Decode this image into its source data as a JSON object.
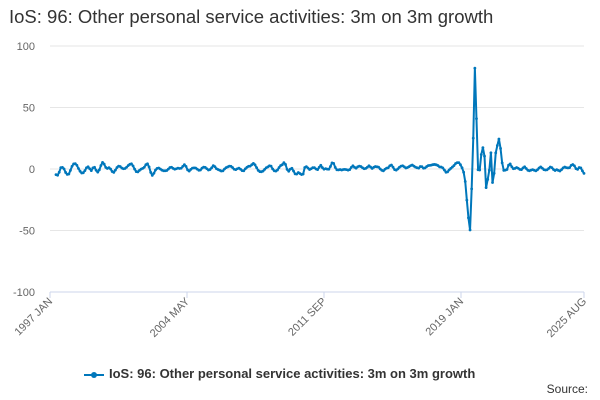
{
  "chart_data": {
    "type": "line",
    "title": "IoS: 96: Other personal service activities: 3m on 3m growth",
    "xlabel": "",
    "ylabel": "",
    "ylim": [
      -100,
      100
    ],
    "yticks": [
      100,
      50,
      0,
      -50,
      -100
    ],
    "x_start": "1997 JAN",
    "x_end": "2025 AUG",
    "x_tick_labels": [
      "1997 JAN",
      "2004 MAY",
      "2011 SEP",
      "2019 JAN",
      "2025 AUG"
    ],
    "grid": true,
    "legend_position": "bottom",
    "series": [
      {
        "name": "IoS: 96: Other personal service activities: 3m on 3m growth",
        "color": "#0077bb",
        "values": [
          -4.6,
          -5.1,
          -2.6,
          1.1,
          1.3,
          0.1,
          -2.8,
          -4.4,
          -4.1,
          -1.1,
          2.2,
          4.1,
          4.4,
          3.0,
          0.4,
          -1.8,
          -3.2,
          -3.0,
          -1.3,
          1.0,
          1.8,
          0.2,
          -1.3,
          0.9,
          1.4,
          -1.0,
          -2.5,
          -0.7,
          2.8,
          5.4,
          4.0,
          1.3,
          0.4,
          1.1,
          0.0,
          -2.0,
          -2.7,
          -0.9,
          1.2,
          2.3,
          2.0,
          0.8,
          0.2,
          0.4,
          1.4,
          2.8,
          3.8,
          4.2,
          2.5,
          -0.1,
          -2.1,
          -2.3,
          -1.1,
          -0.1,
          0.5,
          1.4,
          3.5,
          4.2,
          1.7,
          -2.7,
          -5.2,
          -3.5,
          -0.8,
          0.5,
          0.8,
          0.0,
          -0.9,
          -1.4,
          -1.4,
          -1.2,
          -0.1,
          1.2,
          1.4,
          0.5,
          -0.2,
          0.2,
          0.7,
          0.4,
          0.6,
          2.1,
          3.5,
          2.1,
          -0.7,
          -1.7,
          -0.3,
          0.7,
          0.9,
          0.8,
          -0.1,
          -1.0,
          -0.8,
          0.7,
          1.5,
          1.3,
          0.2,
          -0.8,
          -0.4,
          1.0,
          2.7,
          1.9,
          0.2,
          -0.4,
          -1.0,
          -1.6,
          -1.5,
          0.0,
          1.1,
          1.7,
          2.3,
          2.2,
          1.2,
          -0.2,
          -0.5,
          0.2,
          0.7,
          -0.2,
          -1.3,
          -1.4,
          0.2,
          1.4,
          2.2,
          2.3,
          3.5,
          4.6,
          3.4,
          1.1,
          -1.1,
          -2.1,
          -2.2,
          -1.7,
          -0.3,
          1.0,
          1.7,
          2.6,
          2.3,
          0.0,
          -1.4,
          -1.7,
          -0.8,
          1.2,
          2.8,
          3.5,
          5.2,
          3.7,
          -0.3,
          -1.8,
          -0.1,
          0.6,
          -1.6,
          -4.0,
          -4.1,
          -2.9,
          -3.7,
          -4.5,
          -4.1,
          1.2,
          1.9,
          0.8,
          -0.4,
          0.2,
          1.1,
          1.1,
          0.0,
          -0.5,
          1.4,
          3.0,
          1.1,
          -0.2,
          0.3,
          -0.1,
          -0.2,
          2.0,
          5.0,
          4.6,
          1.3,
          -0.6,
          -0.7,
          -0.4,
          -0.8,
          -0.4,
          -0.3,
          -0.5,
          -0.9,
          -0.5,
          1.3,
          2.6,
          1.4,
          0.6,
          1.8,
          2.3,
          2.0,
          1.0,
          0.2,
          0.5,
          1.4,
          2.6,
          1.6,
          0.4,
          1.4,
          2.0,
          1.8,
          1.5,
          0.1,
          -1.0,
          -1.5,
          -0.2,
          0.7,
          1.0,
          2.6,
          3.2,
          1.5,
          -0.5,
          -0.9,
          0.1,
          1.4,
          2.3,
          2.6,
          1.8,
          0.8,
          1.2,
          1.9,
          2.7,
          3.2,
          2.3,
          1.5,
          1.0,
          0.7,
          2.0,
          1.9,
          0.6,
          0.9,
          2.0,
          2.8,
          2.9,
          3.2,
          3.6,
          3.7,
          3.4,
          2.8,
          1.7,
          1.6,
          0.9,
          -0.8,
          -2.6,
          -2.3,
          -0.7,
          0.5,
          1.6,
          2.8,
          4.5,
          5.2,
          5.2,
          3.5,
          1.0,
          -2.6,
          -10.2,
          -25.3,
          -39.7,
          -49.6,
          -16.2,
          25.1,
          82.0,
          40.9,
          -0.6,
          -0.8,
          11.8,
          17.4,
          10.4,
          -15.1,
          -8.5,
          -1.0,
          13.2,
          -11.0,
          -3.6,
          13.1,
          19.1,
          24.4,
          16.7,
          5.0,
          -1.1,
          -0.9,
          -0.4,
          3.1,
          4.1,
          1.8,
          0.2,
          0.5,
          1.2,
          0.6,
          -0.3,
          -0.5,
          0.9,
          1.8,
          0.4,
          -1.0,
          -1.4,
          -0.9,
          -0.5,
          -1.0,
          -1.5,
          -0.6,
          0.8,
          1.7,
          0.7,
          -0.5,
          -0.8,
          -0.6,
          0.4,
          1.6,
          1.1,
          -0.4,
          -1.2,
          -0.5,
          -1.1,
          -1.6,
          -0.5,
          0.9,
          1.6,
          1.1,
          0.9,
          1.1,
          2.9,
          3.6,
          2.6,
          0.3,
          -0.3,
          1.2,
          0.9,
          -1.5,
          -3.6
        ]
      }
    ]
  },
  "legend": {
    "label": "IoS: 96: Other personal service activities: 3m on 3m growth"
  },
  "footer": {
    "source_label": "Source:"
  }
}
